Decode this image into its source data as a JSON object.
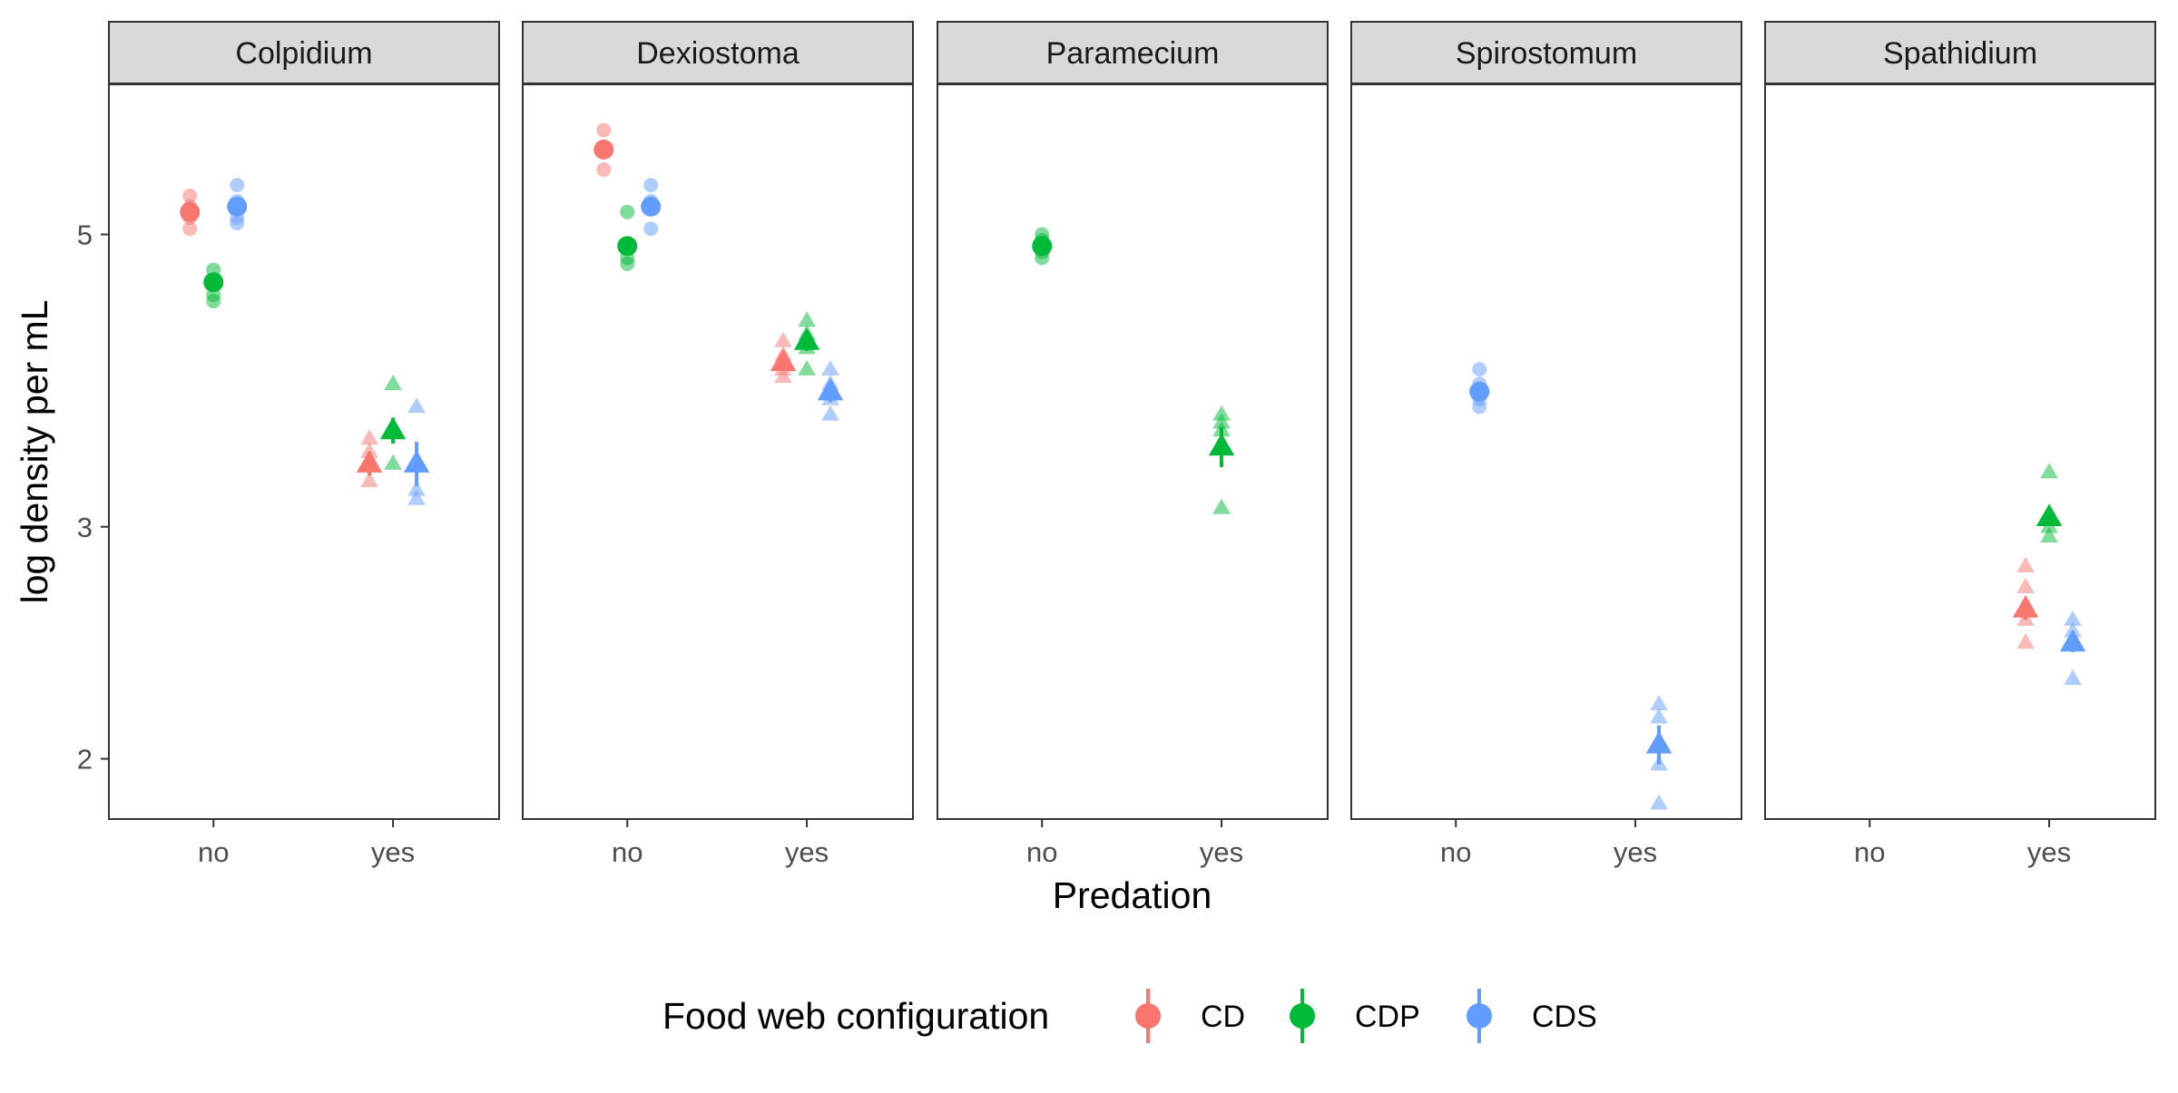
{
  "chart_data": {
    "type": "scatter",
    "title": "",
    "xlabel": "Predation",
    "ylabel": "log density per mL",
    "x_categories": [
      "no",
      "yes"
    ],
    "y_scale": "log",
    "ylim": [
      1.8,
      6.5
    ],
    "yticks": [
      2,
      3,
      5
    ],
    "ytick_labels": [
      "2",
      "3",
      "5"
    ],
    "grid": false,
    "legend": {
      "title": "Food web configuration",
      "position": "bottom",
      "entries": [
        {
          "name": "CD",
          "color": "#F8766D"
        },
        {
          "name": "CDP",
          "color": "#00BA38"
        },
        {
          "name": "CDS",
          "color": "#619CFF"
        }
      ]
    },
    "marker_shapes": {
      "no": "circle",
      "yes": "triangle"
    },
    "panels": [
      {
        "title": "Colpidium",
        "groups": [
          {
            "predation": "no",
            "config": "CD",
            "mean": 5.2,
            "lo": 5.15,
            "hi": 5.25,
            "points": [
              5.35,
              5.25,
              5.15,
              5.05
            ]
          },
          {
            "predation": "no",
            "config": "CDP",
            "mean": 4.6,
            "lo": 4.57,
            "hi": 4.63,
            "points": [
              4.7,
              4.6,
              4.5,
              4.45
            ]
          },
          {
            "predation": "no",
            "config": "CDS",
            "mean": 5.25,
            "lo": 5.2,
            "hi": 5.3,
            "points": [
              5.45,
              5.3,
              5.15,
              5.1
            ]
          },
          {
            "predation": "yes",
            "config": "CD",
            "mean": 3.35,
            "lo": 3.28,
            "hi": 3.42,
            "points": [
              3.5,
              3.42,
              3.35,
              3.25
            ]
          },
          {
            "predation": "yes",
            "config": "CDP",
            "mean": 3.55,
            "lo": 3.47,
            "hi": 3.63,
            "points": [
              3.85,
              3.55,
              3.35
            ]
          },
          {
            "predation": "yes",
            "config": "CDS",
            "mean": 3.35,
            "lo": 3.22,
            "hi": 3.48,
            "points": [
              3.7,
              3.2,
              3.15
            ]
          }
        ]
      },
      {
        "title": "Dexiostoma",
        "groups": [
          {
            "predation": "no",
            "config": "CD",
            "mean": 5.8,
            "lo": 5.73,
            "hi": 5.87,
            "points": [
              6.0,
              5.8,
              5.6
            ]
          },
          {
            "predation": "no",
            "config": "CDP",
            "mean": 4.9,
            "lo": 4.83,
            "hi": 4.97,
            "points": [
              5.2,
              4.9,
              4.8,
              4.75
            ]
          },
          {
            "predation": "no",
            "config": "CDS",
            "mean": 5.25,
            "lo": 5.2,
            "hi": 5.3,
            "points": [
              5.45,
              5.3,
              5.05
            ]
          },
          {
            "predation": "yes",
            "config": "CD",
            "mean": 4.0,
            "lo": 3.96,
            "hi": 4.04,
            "points": [
              4.15,
              4.05,
              3.95,
              3.9
            ]
          },
          {
            "predation": "yes",
            "config": "CDP",
            "mean": 4.15,
            "lo": 4.08,
            "hi": 4.22,
            "points": [
              4.3,
              4.2,
              4.1,
              3.95
            ]
          },
          {
            "predation": "yes",
            "config": "CDS",
            "mean": 3.8,
            "lo": 3.73,
            "hi": 3.87,
            "points": [
              3.95,
              3.85,
              3.75,
              3.65
            ]
          }
        ]
      },
      {
        "title": "Paramecium",
        "groups": [
          {
            "predation": "no",
            "config": "CDP",
            "mean": 4.9,
            "lo": 4.86,
            "hi": 4.94,
            "points": [
              5.0,
              4.95,
              4.85,
              4.8
            ]
          },
          {
            "predation": "yes",
            "config": "CDP",
            "mean": 3.45,
            "lo": 3.33,
            "hi": 3.57,
            "points": [
              3.65,
              3.6,
              3.55,
              3.45,
              3.1
            ]
          }
        ]
      },
      {
        "title": "Spirostomum",
        "groups": [
          {
            "predation": "no",
            "config": "CDS",
            "mean": 3.8,
            "lo": 3.76,
            "hi": 3.84,
            "points": [
              3.95,
              3.85,
              3.75,
              3.7
            ]
          },
          {
            "predation": "yes",
            "config": "CDS",
            "mean": 2.05,
            "lo": 1.98,
            "hi": 2.12,
            "points": [
              2.2,
              2.15,
              2.05,
              1.98,
              1.85
            ]
          }
        ]
      },
      {
        "title": "Spathidium",
        "groups": [
          {
            "predation": "yes",
            "config": "CD",
            "mean": 2.6,
            "lo": 2.55,
            "hi": 2.65,
            "points": [
              2.8,
              2.7,
              2.6,
              2.55,
              2.45
            ]
          },
          {
            "predation": "yes",
            "config": "CDP",
            "mean": 3.05,
            "lo": 3.01,
            "hi": 3.09,
            "points": [
              3.3,
              3.05,
              3.0,
              2.95
            ]
          },
          {
            "predation": "yes",
            "config": "CDS",
            "mean": 2.45,
            "lo": 2.41,
            "hi": 2.49,
            "points": [
              2.55,
              2.5,
              2.45,
              2.3
            ]
          }
        ]
      }
    ]
  }
}
